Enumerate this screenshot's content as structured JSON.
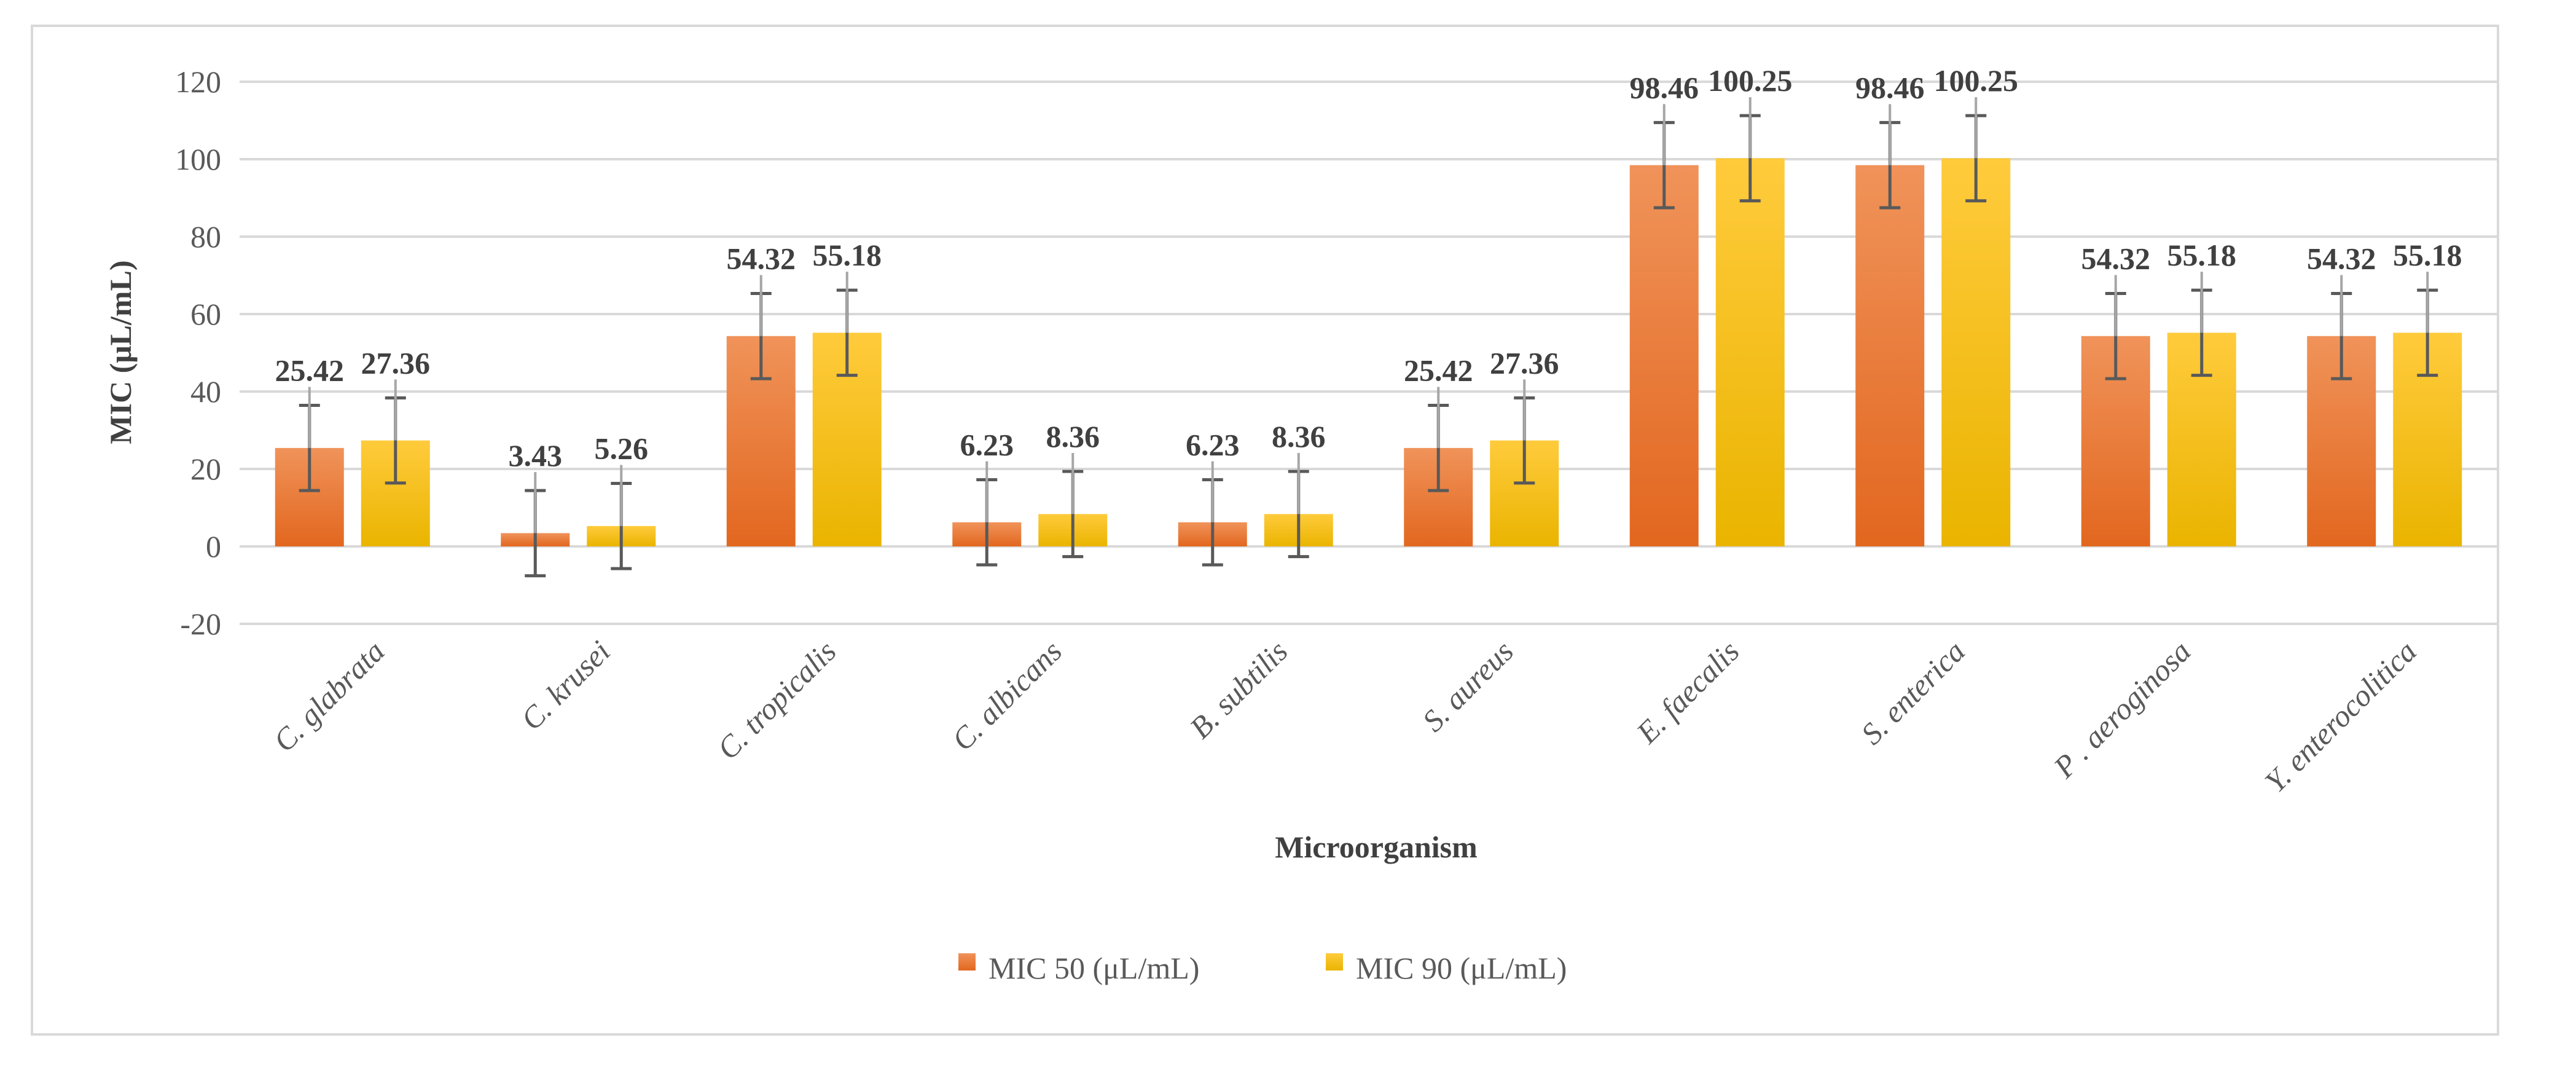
{
  "chart_data": {
    "type": "bar",
    "categories": [
      "C. glabrata",
      "C. krusei",
      "C. tropicalis",
      "C. albicans",
      "B. subtilis",
      "S. aureus",
      "E. faecalis",
      "S. enterica",
      "P . aeroginosa",
      "Y. enterocolitica"
    ],
    "series": [
      {
        "name": "MIC 50 (μL/mL)",
        "values": [
          25.42,
          3.43,
          54.32,
          6.23,
          6.23,
          25.42,
          98.46,
          98.46,
          54.32,
          54.32
        ],
        "error": 11,
        "color": "#ed7d31"
      },
      {
        "name": "MIC 90 (μL/mL)",
        "values": [
          27.36,
          5.26,
          55.18,
          8.36,
          8.36,
          27.36,
          100.25,
          100.25,
          55.18,
          55.18
        ],
        "error": 11,
        "color": "#ffc000"
      }
    ],
    "data_labels": [
      [
        "25.42",
        "3.43",
        "54.32",
        "6.23",
        "6.23",
        "25.42",
        "98.46",
        "98.46",
        "54.32",
        "54.32"
      ],
      [
        "27.36",
        "5.26",
        "55.18",
        "8.36",
        "8.36",
        "27.36",
        "100.25",
        "100.25",
        "55.18",
        "55.18"
      ]
    ],
    "xlabel": "Microorganism",
    "ylabel": "MIC (μL/mL)",
    "ylim": [
      -20,
      120
    ],
    "yticks": [
      -20,
      0,
      20,
      40,
      60,
      80,
      100,
      120
    ],
    "ytick_labels": [
      "-20",
      "0",
      "20",
      "40",
      "60",
      "80",
      "100",
      "120"
    ],
    "grid": true,
    "legend_position": "bottom-center",
    "error_bars": true
  },
  "colors": {
    "grid": "#d9d9d9",
    "axis_text": "#595959",
    "error_bar": "#595959",
    "leader_line": "#a6a6a6"
  }
}
